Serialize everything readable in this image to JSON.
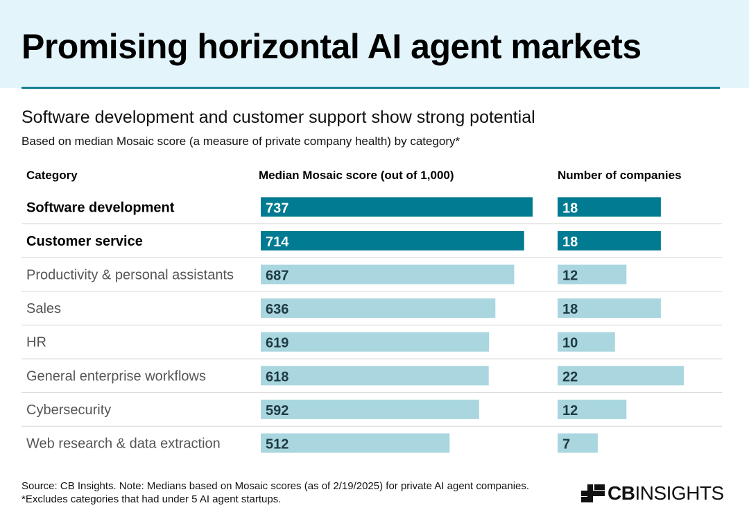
{
  "header": {
    "title": "Promising horizontal AI agent markets"
  },
  "subtitle": "Software development and customer support show strong potential",
  "note": "Based on median Mosaic score (a measure of private company health) by category*",
  "columns": {
    "category": "Category",
    "score": "Median Mosaic score (out of 1,000)",
    "companies": "Number of companies"
  },
  "colors": {
    "highlight": "#007b91",
    "normal": "#a9d6df",
    "highlight_text": "#ffffff",
    "normal_text": "#1f3a44",
    "title_band": "#e3f5fb",
    "rule": "#1a7f90"
  },
  "chart_data": {
    "type": "bar",
    "orientation": "horizontal",
    "categories": [
      "Software development",
      "Customer service",
      "Productivity & personal assistants",
      "Sales",
      "HR",
      "General enterprise workflows",
      "Cybersecurity",
      "Web research & data extraction"
    ],
    "highlighted": [
      true,
      true,
      false,
      false,
      false,
      false,
      false,
      false
    ],
    "series": [
      {
        "name": "Median Mosaic score (out of 1,000)",
        "values": [
          737,
          714,
          687,
          636,
          619,
          618,
          592,
          512
        ],
        "xlim": [
          0,
          737
        ]
      },
      {
        "name": "Number of companies",
        "values": [
          18,
          18,
          12,
          18,
          10,
          22,
          12,
          7
        ],
        "xlim": [
          0,
          22
        ]
      }
    ]
  },
  "footer": {
    "source": "Source: CB Insights. Note: Medians based on Mosaic scores (as of 2/19/2025) for private AI agent companies.",
    "excludes": "*Excludes categories that had under 5 AI agent startups.",
    "logo_bold": "CB",
    "logo_light": "INSIGHTS"
  }
}
